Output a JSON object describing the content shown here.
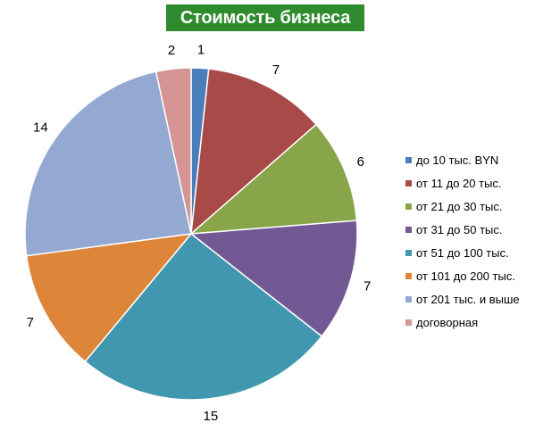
{
  "chart_data": {
    "type": "pie",
    "title": "Стоимость бизнеса",
    "legend_position": "right",
    "categories": [
      "до 10 тыс. BYN",
      "от 11 до 20 тыс.",
      "от 21 до 30 тыс.",
      "от 31 до 50 тыс.",
      "от 51 до 100 тыс.",
      "от 101 до 200 тыс.",
      "от 201 тыс. и выше",
      "договорная"
    ],
    "values": [
      1,
      7,
      6,
      7,
      15,
      7,
      14,
      2
    ],
    "colors": [
      "#4a7ebb",
      "#a84a48",
      "#88a54a",
      "#725993",
      "#4197af",
      "#dd8539",
      "#93a9d1",
      "#d49594"
    ]
  }
}
